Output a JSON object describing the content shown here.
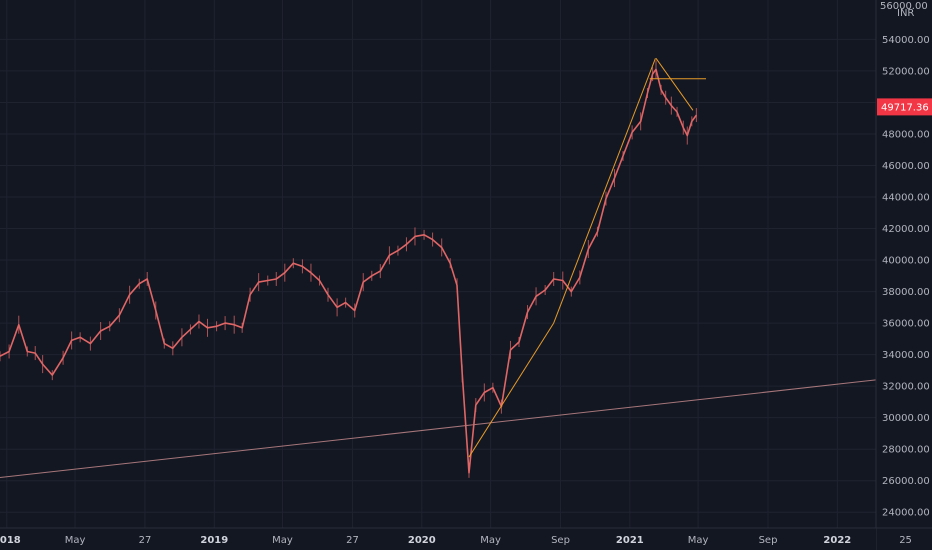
{
  "chart_data": {
    "type": "line",
    "currency": "INR",
    "last_price_label": "49717.36",
    "colors": {
      "background": "#131722",
      "grid": "#1f2330",
      "price_line": "#e06666",
      "trend_main": "#f0a12a",
      "trend_support": "#e6a0a0",
      "price_badge": "#f23645",
      "axis_text": "#b2b5be"
    },
    "ylim": [
      23000,
      56500
    ],
    "y_ticks": [
      24000,
      26000,
      28000,
      30000,
      32000,
      34000,
      36000,
      38000,
      40000,
      42000,
      44000,
      46000,
      48000,
      50000,
      52000,
      54000
    ],
    "y_tick_labels": [
      "24000.00",
      "26000.00",
      "28000.00",
      "30000.00",
      "32000.00",
      "34000.00",
      "36000.00",
      "38000.00",
      "40000.00",
      "42000.00",
      "44000.00",
      "46000.00",
      "48000.00",
      "50000.00",
      "52000.00",
      "54000.00"
    ],
    "y_top_partial_label": "56000.00",
    "xlim": [
      "2017-12-20",
      "2022-03-10"
    ],
    "x_ticks": [
      {
        "date": "2018-01-01",
        "label": "2018",
        "year": true
      },
      {
        "date": "2018-05-01",
        "label": "May",
        "year": false
      },
      {
        "date": "2018-09-01",
        "label": "27",
        "year": false
      },
      {
        "date": "2019-01-01",
        "label": "2019",
        "year": true
      },
      {
        "date": "2019-05-01",
        "label": "May",
        "year": false
      },
      {
        "date": "2019-09-01",
        "label": "27",
        "year": false
      },
      {
        "date": "2020-01-01",
        "label": "2020",
        "year": true
      },
      {
        "date": "2020-05-01",
        "label": "May",
        "year": false
      },
      {
        "date": "2020-09-01",
        "label": "Sep",
        "year": false
      },
      {
        "date": "2021-01-01",
        "label": "2021",
        "year": true
      },
      {
        "date": "2021-05-01",
        "label": "May",
        "year": false
      },
      {
        "date": "2021-09-01",
        "label": "Sep",
        "year": false
      },
      {
        "date": "2022-01-01",
        "label": "2022",
        "year": true
      },
      {
        "date": "2022-05-01",
        "label": "25",
        "year": false
      }
    ],
    "series": [
      {
        "x": [
          "2017-12-20",
          "2018-01-05",
          "2018-01-22",
          "2018-02-06",
          "2018-02-20",
          "2018-03-05",
          "2018-03-22",
          "2018-04-10",
          "2018-04-25",
          "2018-05-10",
          "2018-05-28",
          "2018-06-15",
          "2018-07-01",
          "2018-07-18",
          "2018-08-05",
          "2018-08-22",
          "2018-09-05",
          "2018-09-20",
          "2018-10-05",
          "2018-10-20",
          "2018-11-05",
          "2018-11-20",
          "2018-12-05",
          "2018-12-20",
          "2019-01-05",
          "2019-01-20",
          "2019-02-05",
          "2019-02-19",
          "2019-03-05",
          "2019-03-20",
          "2019-04-05",
          "2019-04-20",
          "2019-05-05",
          "2019-05-20",
          "2019-06-05",
          "2019-06-20",
          "2019-07-05",
          "2019-07-20",
          "2019-08-05",
          "2019-08-20",
          "2019-09-05",
          "2019-09-20",
          "2019-10-05",
          "2019-10-20",
          "2019-11-05",
          "2019-11-20",
          "2019-12-05",
          "2019-12-20",
          "2020-01-05",
          "2020-01-20",
          "2020-02-05",
          "2020-02-20",
          "2020-03-03",
          "2020-03-12",
          "2020-03-24",
          "2020-04-05",
          "2020-04-20",
          "2020-05-05",
          "2020-05-20",
          "2020-06-05",
          "2020-06-20",
          "2020-07-05",
          "2020-07-20",
          "2020-08-05",
          "2020-08-20",
          "2020-09-05",
          "2020-09-20",
          "2020-10-05",
          "2020-10-20",
          "2020-11-05",
          "2020-11-20",
          "2020-12-05",
          "2020-12-20",
          "2021-01-05",
          "2021-01-20",
          "2021-02-01",
          "2021-02-10",
          "2021-02-16",
          "2021-02-25",
          "2021-03-05",
          "2021-03-15",
          "2021-03-25",
          "2021-04-05",
          "2021-04-12",
          "2021-04-20",
          "2021-04-28"
        ],
        "values": [
          33900,
          34200,
          35900,
          34200,
          34100,
          33400,
          32700,
          33800,
          34900,
          35100,
          34700,
          35500,
          35800,
          36500,
          37800,
          38500,
          38800,
          36800,
          34700,
          34400,
          35100,
          35600,
          36100,
          35700,
          35800,
          36000,
          35900,
          35700,
          37800,
          38600,
          38700,
          38800,
          39200,
          39800,
          39600,
          39200,
          38700,
          37800,
          37000,
          37300,
          36800,
          38600,
          39000,
          39300,
          40300,
          40600,
          41000,
          41500,
          41600,
          41300,
          40800,
          39800,
          38400,
          32800,
          26500,
          30800,
          31600,
          31900,
          30700,
          34300,
          34800,
          36700,
          37700,
          38100,
          38800,
          38700,
          38000,
          38900,
          40700,
          41800,
          43900,
          45200,
          46600,
          48100,
          48800,
          50600,
          51800,
          52100,
          50800,
          50300,
          49800,
          49400,
          48400,
          47900,
          48800,
          49200
        ]
      }
    ],
    "trendlines": [
      {
        "from": {
          "x": "2020-03-24",
          "y": 27500
        },
        "to": {
          "x": "2020-08-20",
          "y": 36000
        }
      },
      {
        "from": {
          "x": "2020-08-20",
          "y": 36000
        },
        "to": {
          "x": "2021-02-15",
          "y": 52800
        }
      },
      {
        "from": {
          "x": "2021-02-16",
          "y": 52800
        },
        "to": {
          "x": "2021-04-22",
          "y": 49500
        }
      },
      {
        "from": {
          "x": "2021-02-05",
          "y": 51500
        },
        "to": {
          "x": "2021-05-15",
          "y": 51500
        }
      },
      {
        "from": {
          "x": "2017-12-20",
          "y": 26200
        },
        "to": {
          "x": "2022-03-10",
          "y": 32400
        }
      }
    ]
  }
}
